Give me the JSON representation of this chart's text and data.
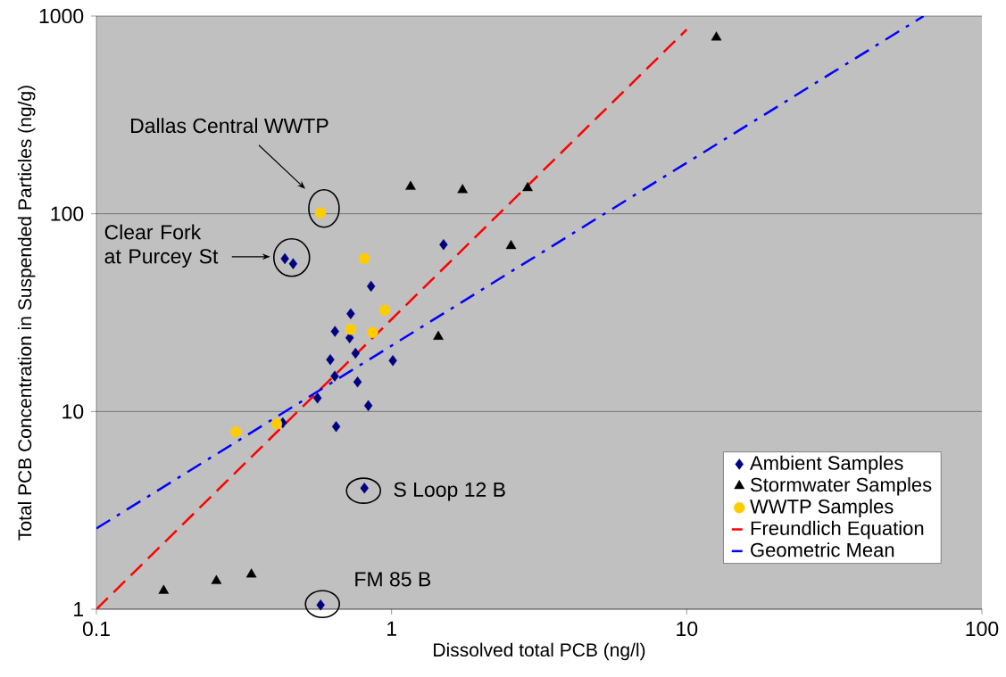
{
  "chart_data": {
    "type": "scatter",
    "xlabel": "Dissolved total PCB (ng/l)",
    "ylabel": "Total PCB Concentration in Suspended Particles (ng/g)",
    "log": "xy",
    "xlim": [
      0.1,
      100
    ],
    "ylim": [
      1,
      1000
    ],
    "xticks": [
      0.1,
      1,
      10,
      100
    ],
    "yticks": [
      1,
      10,
      100,
      1000
    ],
    "grid": "y",
    "legend": "bottom right",
    "series": [
      {
        "name": "Ambient Samples",
        "marker": "diamond",
        "color": "#000080",
        "x": [
          0.435,
          0.464,
          1.5,
          0.852,
          0.727,
          0.643,
          0.721,
          0.755,
          0.62,
          1.01,
          0.642,
          0.767,
          0.561,
          0.834,
          0.649,
          0.428,
          0.809,
          0.575
        ],
        "values": [
          59.3,
          55.9,
          69.8,
          43.0,
          31.2,
          25.4,
          23.6,
          19.7,
          18.3,
          18.1,
          15.1,
          14.1,
          11.7,
          10.7,
          8.39,
          8.77,
          4.1,
          1.05
        ]
      },
      {
        "name": "Stormwater Samples",
        "marker": "triangle",
        "color": "#000000",
        "x": [
          1.16,
          1.74,
          2.89,
          12.6,
          2.54,
          1.44,
          0.169,
          0.255,
          0.335
        ],
        "values": [
          137,
          132,
          135,
          780,
          68.8,
          23.9,
          1.24,
          1.39,
          1.5
        ]
      },
      {
        "name": "WWTP Samples",
        "marker": "circle",
        "color": "#ffcc00",
        "x": [
          0.574,
          0.808,
          0.948,
          0.727,
          0.862,
          0.408,
          0.297
        ],
        "values": [
          101,
          59.3,
          32.5,
          26.0,
          25.1,
          8.65,
          7.88
        ]
      },
      {
        "name": "Freundlich Equation",
        "type": "line",
        "marker": "none",
        "line_style": "dashed",
        "color": "#ff0000",
        "x": [
          0.1,
          10
        ],
        "values": [
          1,
          855
        ]
      },
      {
        "name": "Geometric Mean",
        "type": "line",
        "marker": "none",
        "line_style": "dashdot",
        "color": "#0000ff",
        "x": [
          0.1,
          63.5
        ],
        "values": [
          2.56,
          1000
        ]
      }
    ],
    "annotations": [
      "Dallas Central WWTP",
      "Clear Fork at Purcey St",
      {
        "text": "S Loop 12 B",
        "x": 0.809,
        "y": 4.1
      },
      {
        "text": "FM 85 B",
        "x": 0.575,
        "y": 1.05
      }
    ]
  }
}
